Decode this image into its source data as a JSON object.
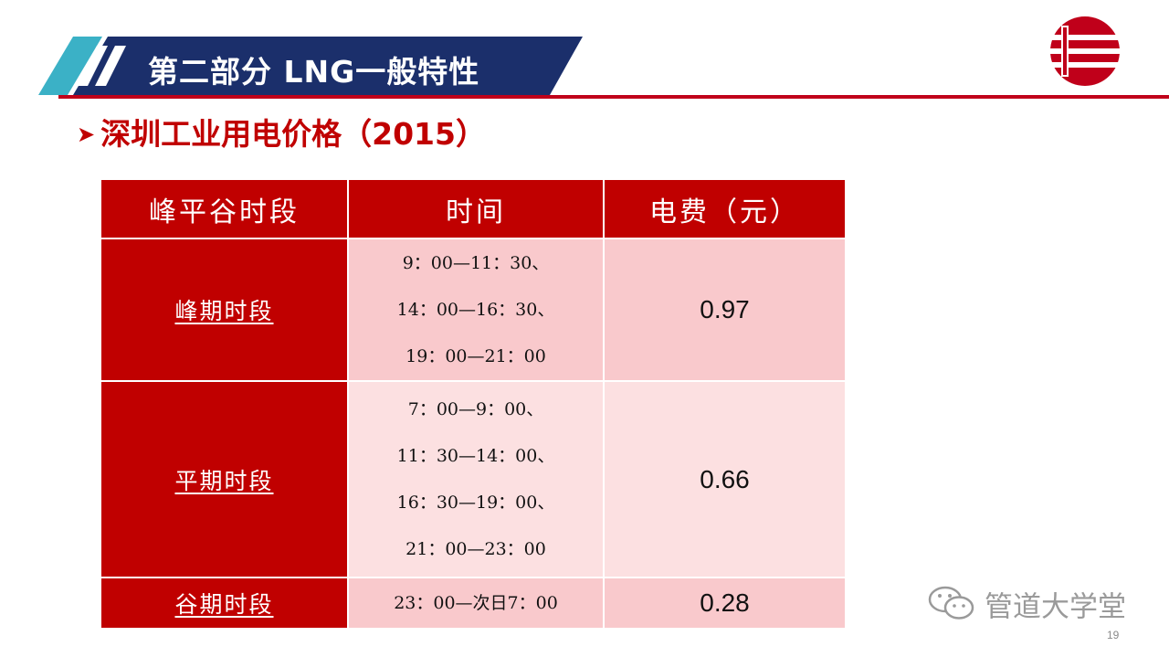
{
  "header": {
    "section_title": "第二部分  LNG一般特性"
  },
  "subtitle": {
    "text": "深圳工业用电价格（2015）"
  },
  "table": {
    "headers": [
      "峰平谷时段",
      "时间",
      "电费（元）"
    ],
    "rows": [
      {
        "period": "峰期时段",
        "times": [
          "9：00—11：30、",
          "14：00—16：30、",
          "19：00—21：00"
        ],
        "price": "0.97"
      },
      {
        "period": "平期时段",
        "times": [
          "7：00—9：00、",
          "11：30—14：00、",
          "16：30—19：00、",
          "21：00—23：00"
        ],
        "price": "0.66"
      },
      {
        "period": "谷期时段",
        "times": [
          "23：00—次日7：00"
        ],
        "price": "0.28"
      }
    ]
  },
  "watermark": {
    "text": "管道大学堂"
  },
  "page_number": "19",
  "colors": {
    "brand_red": "#c00000",
    "banner_navy": "#1b2f6b",
    "banner_teal": "#3bb1c6",
    "row_pink": "#f9c9cc",
    "row_light_pink": "#fce0e1"
  }
}
